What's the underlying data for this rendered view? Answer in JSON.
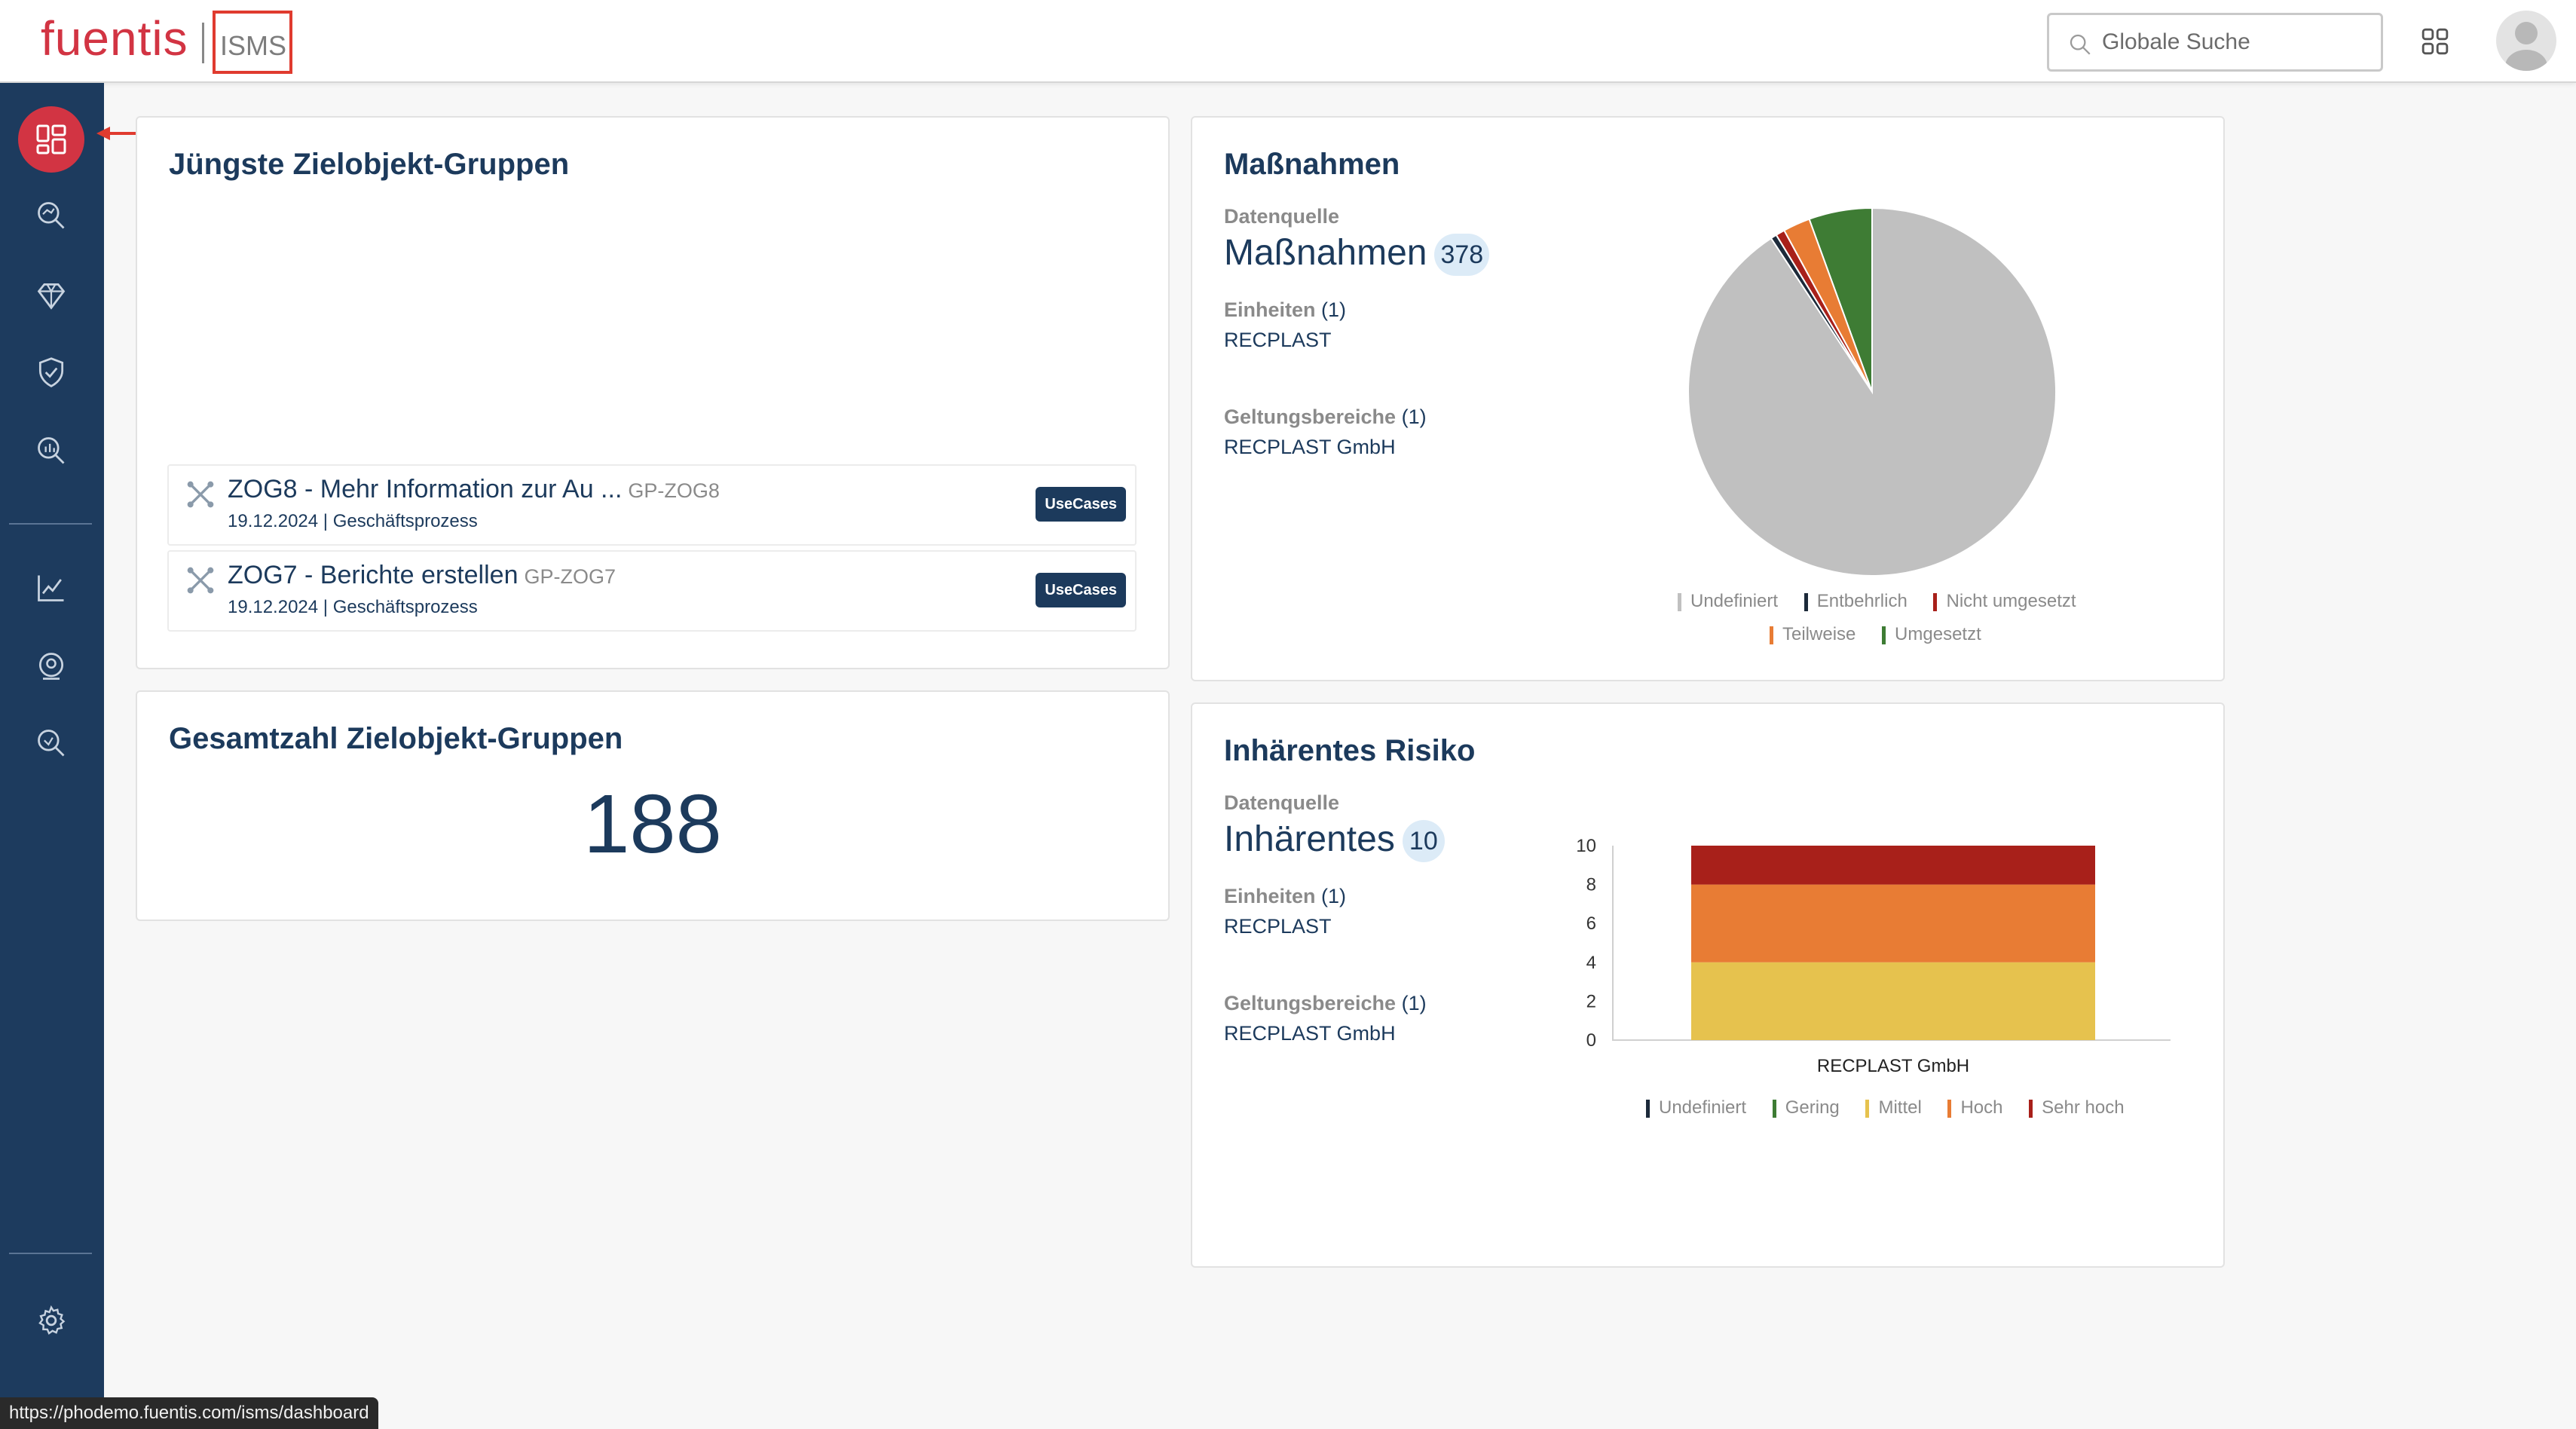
{
  "header": {
    "logo": "fuentis",
    "logo_sub": "ISMS",
    "search_placeholder": "Globale Suche"
  },
  "sidebar": {
    "items": [
      {
        "icon": "dashboard-icon"
      },
      {
        "icon": "search-analysis-icon"
      },
      {
        "icon": "diamond-icon"
      },
      {
        "icon": "shield-check-icon"
      },
      {
        "icon": "search-chart-icon"
      },
      {
        "icon": "line-chart-icon"
      },
      {
        "icon": "target-person-icon"
      },
      {
        "icon": "search-magnifier-icon"
      },
      {
        "icon": "gear-icon"
      }
    ]
  },
  "recent_groups": {
    "title": "Jüngste Zielobjekt-Gruppen",
    "items": [
      {
        "title": "ZOG8 - Mehr Information zur Au ...",
        "code": "GP-ZOG8",
        "date": "19.12.2024 | Geschäftsprozess",
        "badge": "UseCases"
      },
      {
        "title": "ZOG7 - Berichte erstellen",
        "code": "GP-ZOG7",
        "date": "19.12.2024 | Geschäftsprozess",
        "badge": "UseCases"
      }
    ]
  },
  "total_groups": {
    "title": "Gesamtzahl Zielobjekt-Gruppen",
    "value": "188"
  },
  "massnahmen": {
    "title": "Maßnahmen",
    "source_label": "Datenquelle",
    "source_name": "Maßnahmen",
    "source_count": "378",
    "units_label": "Einheiten",
    "units_count": "(1)",
    "units_value": "RECPLAST",
    "scope_label": "Geltungsbereiche",
    "scope_count": "(1)",
    "scope_value": "RECPLAST GmbH",
    "legend": [
      "Undefiniert",
      "Entbehrlich",
      "Nicht umgesetzt",
      "Teilweise",
      "Umgesetzt"
    ]
  },
  "risiko": {
    "title": "Inhärentes Risiko",
    "source_label": "Datenquelle",
    "source_name": "Inhärentes",
    "source_count": "10",
    "units_label": "Einheiten",
    "units_count": "(1)",
    "units_value": "RECPLAST",
    "scope_label": "Geltungsbereiche",
    "scope_count": "(1)",
    "scope_value": "RECPLAST GmbH",
    "legend": [
      "Undefiniert",
      "Gering",
      "Mittel",
      "Hoch",
      "Sehr hoch"
    ]
  },
  "status_url": "https://phodemo.fuentis.com/isms/dashboard",
  "colors": {
    "navy": "#1d3b5e",
    "brand_red": "#d23443",
    "undefiniert": "#c0c0c0",
    "entbehrlich": "#1c2a3a",
    "nicht_umgesetzt": "#a8201a",
    "teilweise": "#e87c34",
    "umgesetzt": "#3e7c34",
    "gering": "#3e7c34",
    "mittel": "#e6c24e",
    "hoch": "#e87c34",
    "sehr_hoch": "#a8201a"
  },
  "chart_data": [
    {
      "type": "pie",
      "series": [
        {
          "name": "Undefiniert",
          "value": 343
        },
        {
          "name": "Entbehrlich",
          "value": 2
        },
        {
          "name": "Nicht umgesetzt",
          "value": 3
        },
        {
          "name": "Teilweise",
          "value": 9
        },
        {
          "name": "Umgesetzt",
          "value": 21
        }
      ]
    },
    {
      "type": "bar",
      "stacked": true,
      "categories": [
        "RECPLAST GmbH"
      ],
      "series": [
        {
          "name": "Undefiniert",
          "values": [
            0
          ]
        },
        {
          "name": "Gering",
          "values": [
            0
          ]
        },
        {
          "name": "Mittel",
          "values": [
            4
          ]
        },
        {
          "name": "Hoch",
          "values": [
            4
          ]
        },
        {
          "name": "Sehr hoch",
          "values": [
            2
          ]
        }
      ],
      "ylim": [
        0,
        10
      ],
      "yticks": [
        0,
        2,
        4,
        6,
        8,
        10
      ]
    }
  ]
}
